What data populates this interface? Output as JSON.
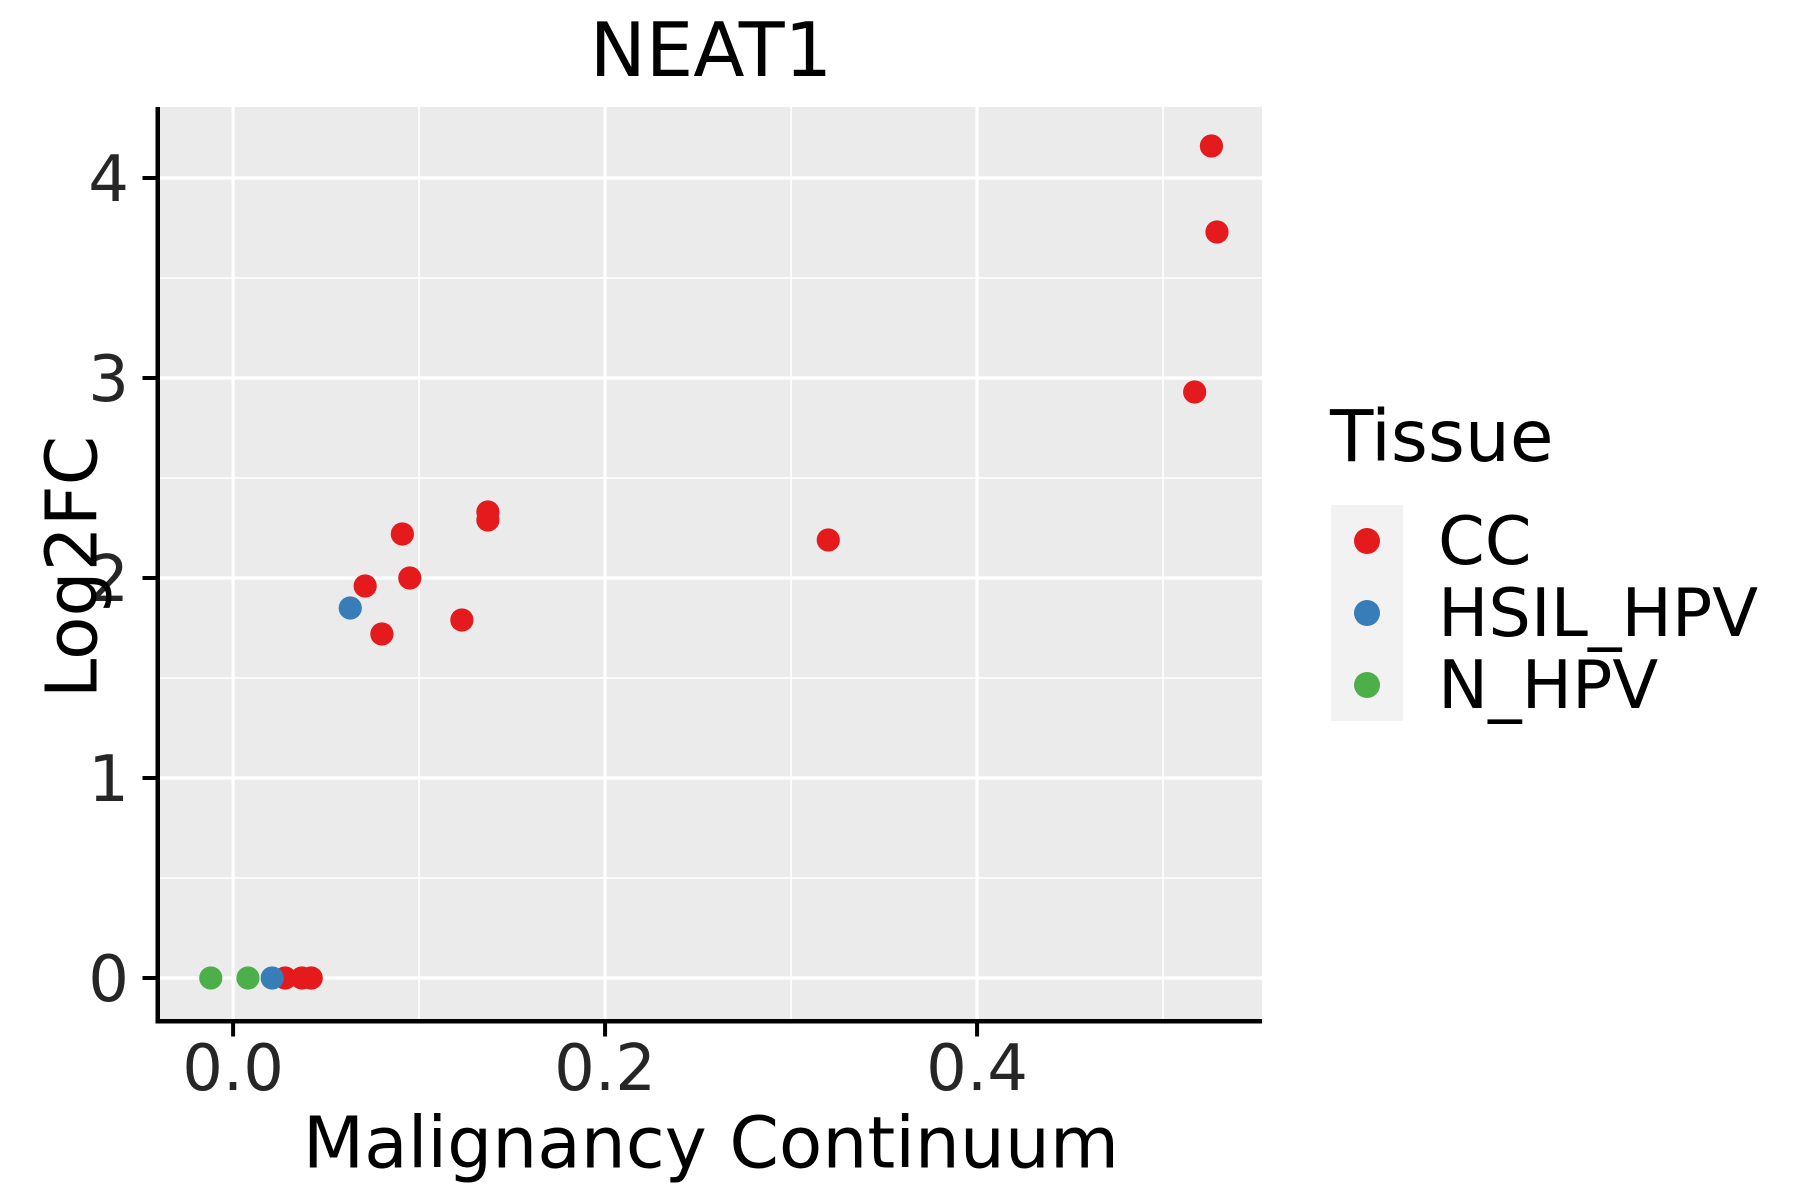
{
  "chart_data": {
    "type": "scatter",
    "title": "NEAT1",
    "xlabel": "Malignancy Continuum",
    "ylabel": "Log2FC",
    "legend": {
      "title": "Tissue",
      "position": "right"
    },
    "xlim": [
      -0.0393,
      0.5532
    ],
    "ylim": [
      -0.205,
      4.355
    ],
    "x_ticks": {
      "values": [
        0.0,
        0.2,
        0.4
      ],
      "labels": [
        "0.0",
        "0.2",
        "0.4"
      ]
    },
    "y_ticks": {
      "values": [
        0,
        1,
        2,
        3,
        4
      ],
      "labels": [
        "0",
        "1",
        "2",
        "3",
        "4"
      ]
    },
    "x_minor_gridlines": [
      0.1,
      0.3,
      0.5
    ],
    "y_minor_gridlines": [
      0.5,
      1.5,
      2.5,
      3.5
    ],
    "grid": "on",
    "series": [
      {
        "name": "CC",
        "color": "#E41A1C",
        "points": [
          [
            0.028,
            0.0
          ],
          [
            0.037,
            0.0
          ],
          [
            0.042,
            0.0
          ],
          [
            0.071,
            1.96
          ],
          [
            0.08,
            1.72
          ],
          [
            0.091,
            2.22
          ],
          [
            0.095,
            2.0
          ],
          [
            0.123,
            1.79
          ],
          [
            0.137,
            2.29
          ],
          [
            0.137,
            2.33
          ],
          [
            0.32,
            2.19
          ],
          [
            0.517,
            2.93
          ],
          [
            0.526,
            4.16
          ],
          [
            0.529,
            3.73
          ]
        ]
      },
      {
        "name": "HSIL_HPV",
        "color": "#377EB8",
        "points": [
          [
            0.021,
            0.0
          ],
          [
            0.063,
            1.85
          ]
        ]
      },
      {
        "name": "N_HPV",
        "color": "#4DAF4A",
        "points": [
          [
            -0.012,
            0.0
          ],
          [
            0.008,
            0.0
          ]
        ]
      }
    ],
    "colors": {
      "panel_background": "#EBEBEB",
      "gridline": "#FFFFFF",
      "axis_line": "#000000",
      "tick_label": "#262626",
      "legend_key_background": "#F2F2F2"
    }
  }
}
